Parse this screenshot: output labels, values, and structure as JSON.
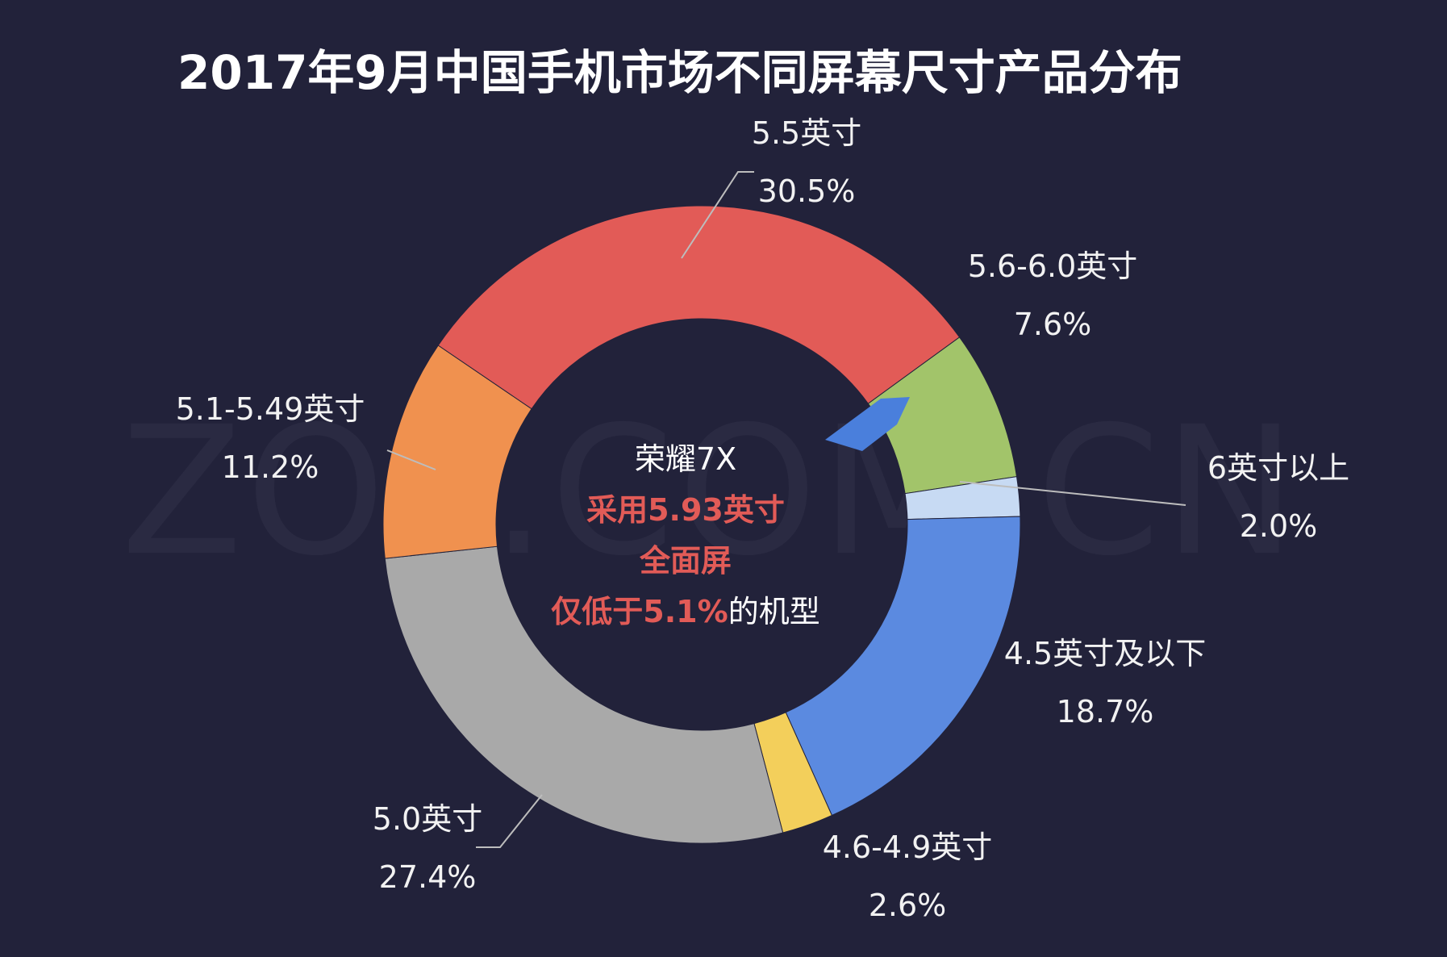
{
  "watermark": "ZOL.COM.CN",
  "colors": {
    "background": "#22223a",
    "highlight": "#e25b57",
    "arrow": "#4a7fdc",
    "leader": "#bdbdbd"
  },
  "chart_data": {
    "type": "pie",
    "title": "2017年9月中国手机市场不同屏幕尺寸产品分布",
    "donut": true,
    "start_angle_deg": 54,
    "direction": "clockwise",
    "slices": [
      {
        "label": "5.6-6.0英寸",
        "value": 7.6,
        "display": "7.6%",
        "color": "#a2c46a"
      },
      {
        "label": "6英寸以上",
        "value": 2.0,
        "display": "2.0%",
        "color": "#c7daf3"
      },
      {
        "label": "4.5英寸及以下",
        "value": 18.7,
        "display": "18.7%",
        "color": "#5b8ae0"
      },
      {
        "label": "4.6-4.9英寸",
        "value": 2.6,
        "display": "2.6%",
        "color": "#f3cf5b"
      },
      {
        "label": "5.0英寸",
        "value": 27.4,
        "display": "27.4%",
        "color": "#a9a9a9"
      },
      {
        "label": "5.1-5.49英寸",
        "value": 11.2,
        "display": "11.2%",
        "color": "#f0914f"
      },
      {
        "label": "5.5英寸",
        "value": 30.5,
        "display": "30.5%",
        "color": "#e25b57"
      }
    ],
    "center_annotation": {
      "line1": "荣耀7X",
      "line2": "采用5.93英寸",
      "line3": "全面屏",
      "line4_highlight": "仅低于5.1%",
      "line4_rest": "的机型"
    }
  }
}
